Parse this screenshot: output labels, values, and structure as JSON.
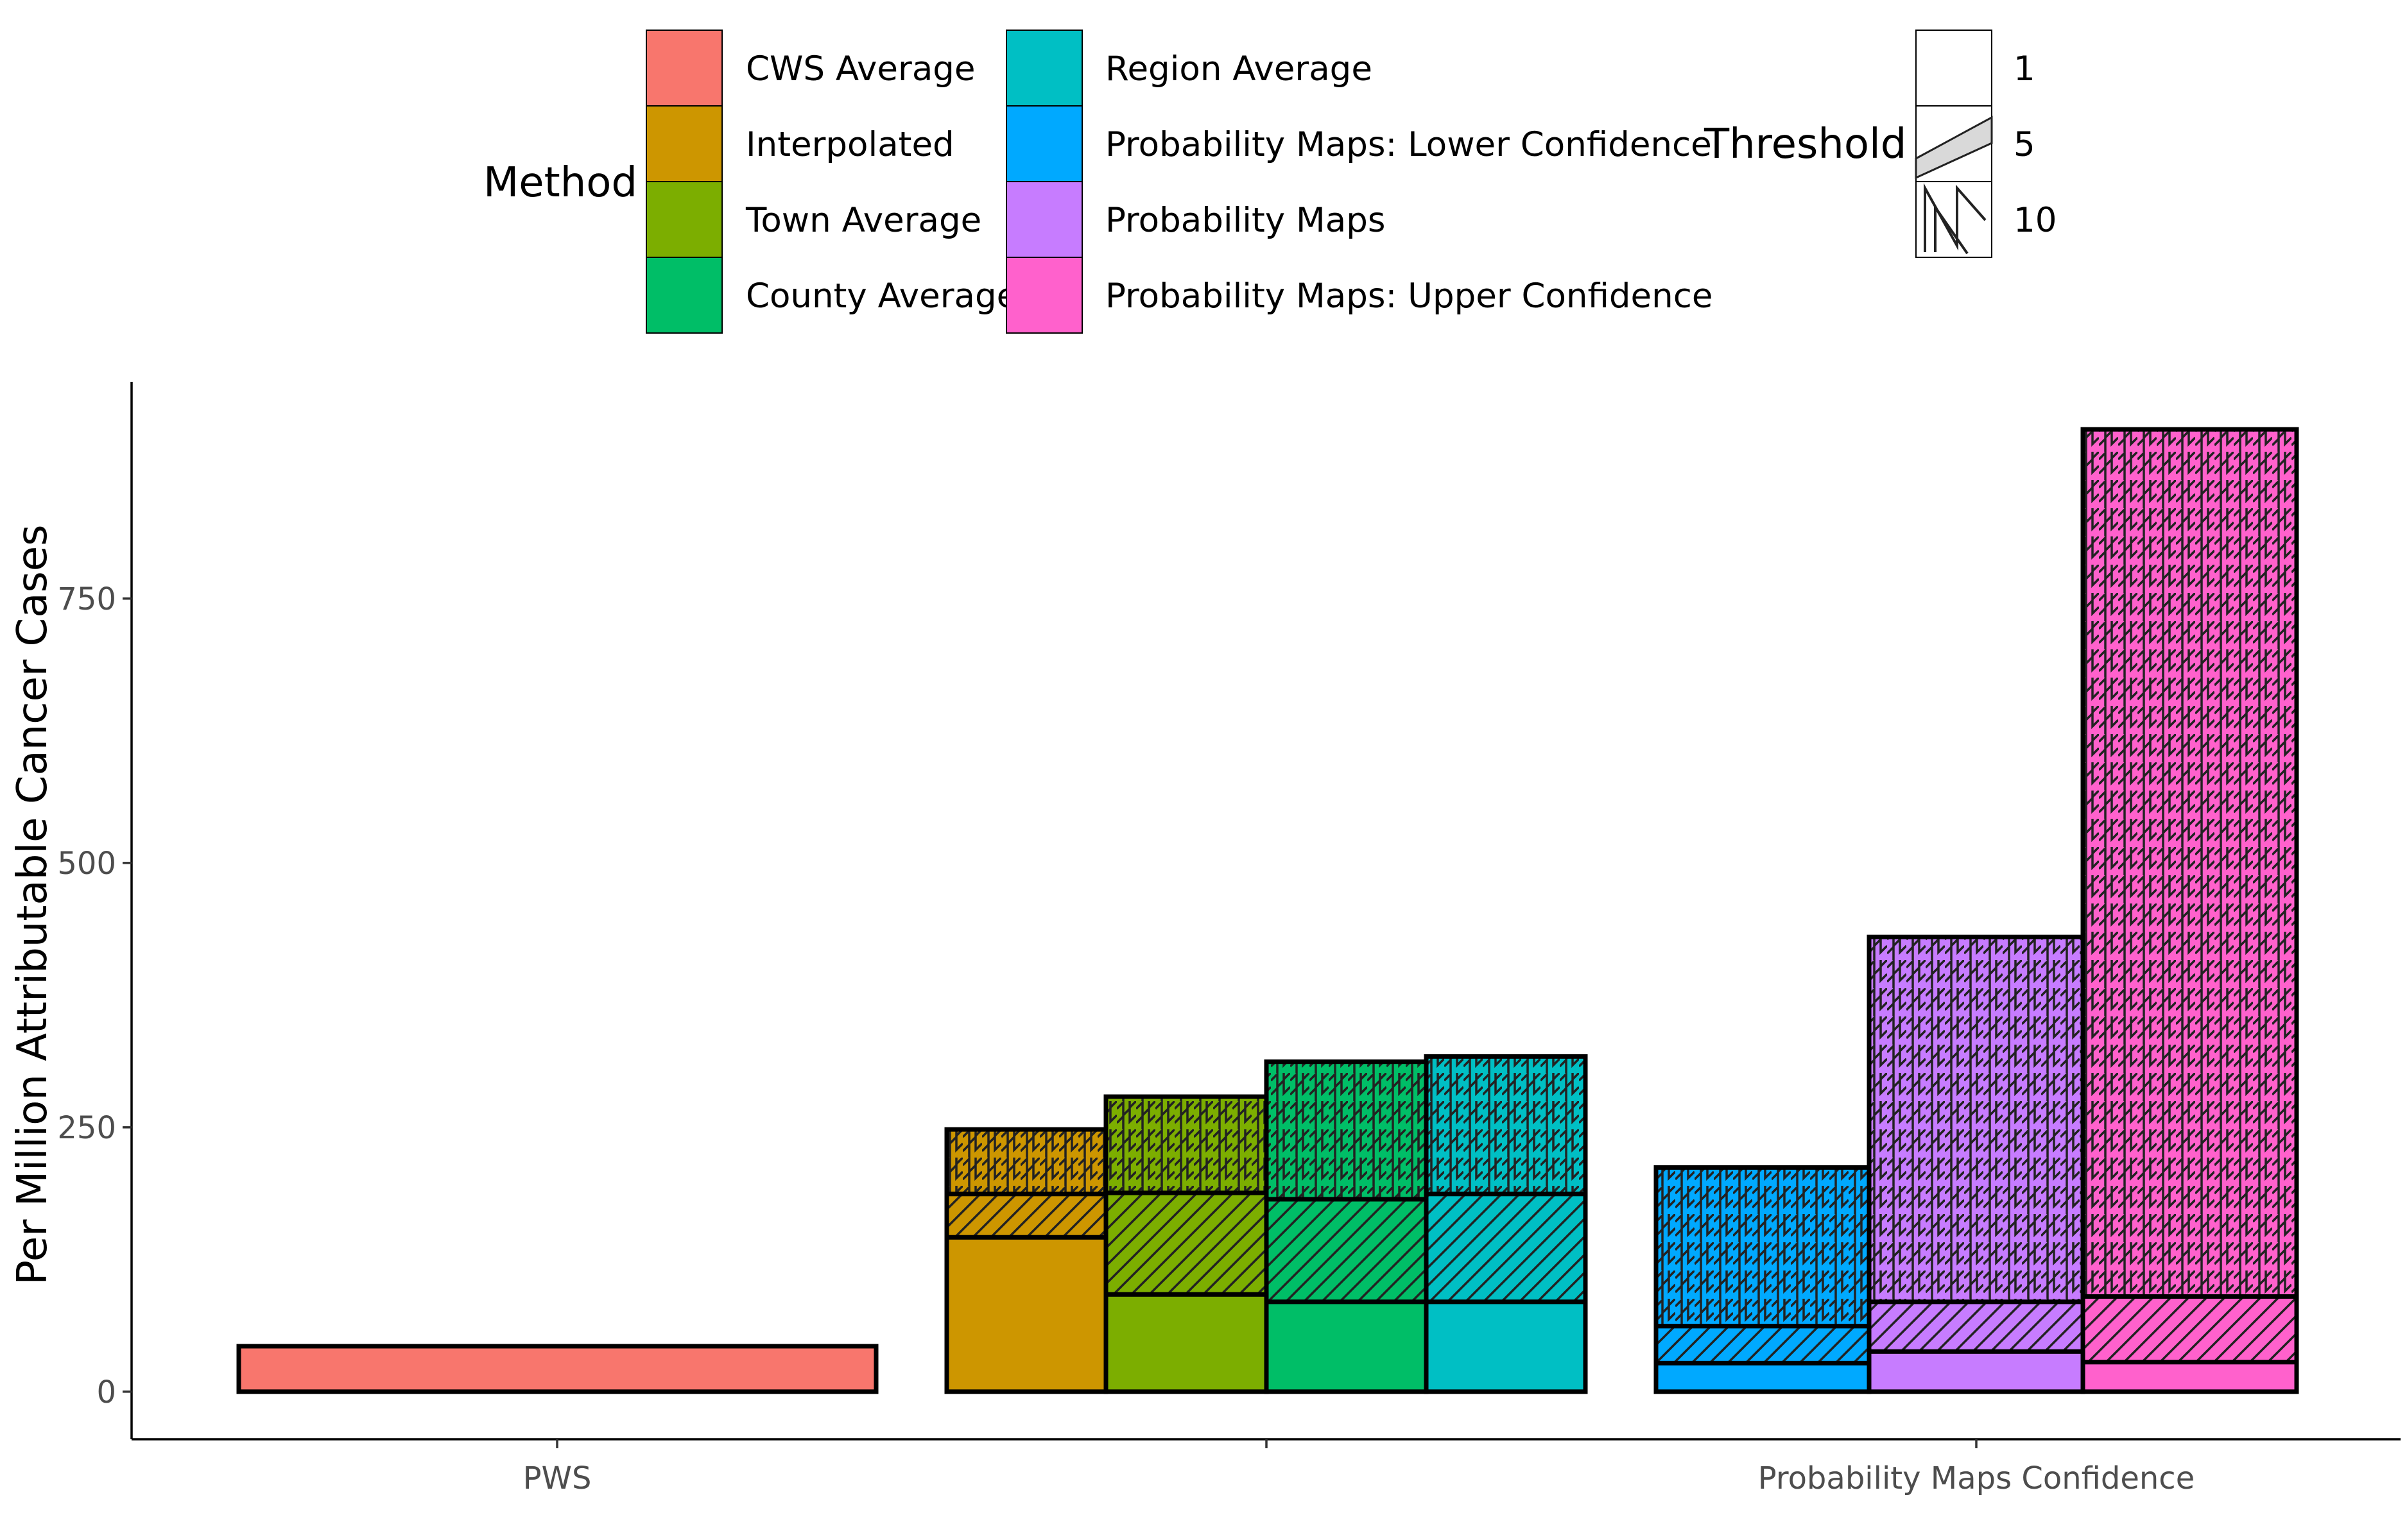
{
  "chart_data": {
    "type": "bar",
    "title": "",
    "ylabel": "Per Million Attributable Cancer Cases",
    "xlabel": "",
    "ylim": [
      -45,
      955
    ],
    "yticks": [
      0,
      250,
      500,
      750
    ],
    "categories": [
      "PWS",
      "",
      "Probability Maps Confidence"
    ],
    "grid": false,
    "legend": {
      "position": "top",
      "method": {
        "title": "Method",
        "entries": [
          {
            "label": "CWS Average",
            "color": "#F8766D"
          },
          {
            "label": "Interpolated",
            "color": "#CD9600"
          },
          {
            "label": "Town Average",
            "color": "#7CAE00"
          },
          {
            "label": "County Average",
            "color": "#00BE67"
          },
          {
            "label": "Region Average",
            "color": "#00BFC4"
          },
          {
            "label": "Probability Maps: Lower Confidence",
            "color": "#00A9FF"
          },
          {
            "label": "Probability Maps",
            "color": "#C77CFF"
          },
          {
            "label": "Probability Maps: Upper Confidence",
            "color": "#FF61CC"
          }
        ]
      },
      "threshold": {
        "title": "Threshold",
        "entries": [
          {
            "label": "1",
            "pattern": "none"
          },
          {
            "label": "5",
            "pattern": "stripe"
          },
          {
            "label": "10",
            "pattern": "zigzag"
          }
        ]
      }
    },
    "series": [
      {
        "name": "CWS Average",
        "category": "PWS",
        "color": "#F8766D",
        "values": {
          "1": 43
        }
      },
      {
        "name": "Interpolated",
        "category": "",
        "color": "#CD9600",
        "values": {
          "1": 146,
          "5": 187,
          "10": 248
        }
      },
      {
        "name": "Town Average",
        "category": "",
        "color": "#7CAE00",
        "values": {
          "1": 92,
          "5": 188,
          "10": 279
        }
      },
      {
        "name": "County Average",
        "category": "",
        "color": "#00BE67",
        "values": {
          "1": 85,
          "5": 182,
          "10": 312
        }
      },
      {
        "name": "Region Average",
        "category": "",
        "color": "#00BFC4",
        "values": {
          "1": 85,
          "5": 187,
          "10": 317
        }
      },
      {
        "name": "Probability Maps: Lower Confidence",
        "category": "Probability Maps Confidence",
        "color": "#00A9FF",
        "values": {
          "1": 27,
          "5": 62,
          "10": 212
        }
      },
      {
        "name": "Probability Maps",
        "category": "Probability Maps Confidence",
        "color": "#C77CFF",
        "values": {
          "1": 38,
          "5": 85,
          "10": 430
        }
      },
      {
        "name": "Probability Maps: Upper Confidence",
        "category": "Probability Maps Confidence",
        "color": "#FF61CC",
        "values": {
          "1": 28,
          "5": 90,
          "10": 910
        }
      }
    ]
  }
}
